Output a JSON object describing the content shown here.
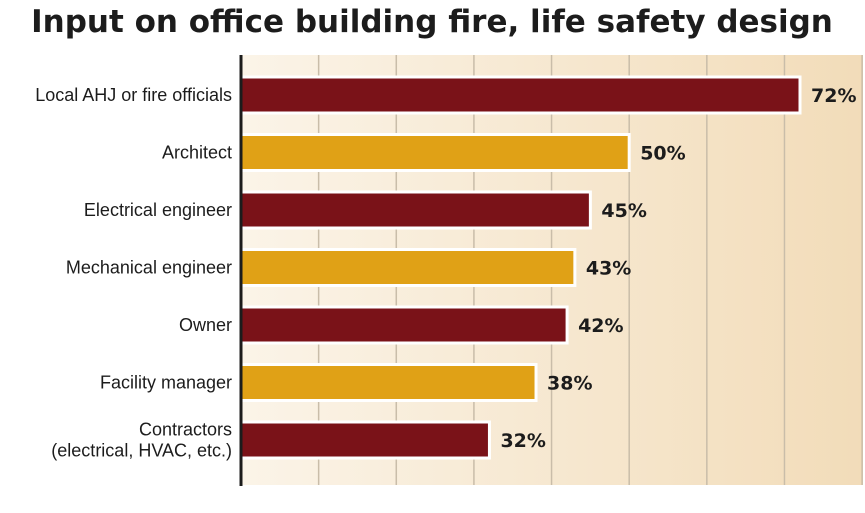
{
  "chart_data": {
    "type": "bar",
    "orientation": "horizontal",
    "title": "Input on office building fire, life safety design",
    "xlabel": "",
    "ylabel": "",
    "categories": [
      [
        "Local AHJ or fire officials"
      ],
      [
        "Architect"
      ],
      [
        "Electrical engineer"
      ],
      [
        "Mechanical engineer"
      ],
      [
        "Owner"
      ],
      [
        "Facility manager"
      ],
      [
        "Contractors",
        "(electrical, HVAC, etc.)"
      ]
    ],
    "values": [
      72,
      50,
      45,
      43,
      42,
      38,
      32
    ],
    "value_labels": [
      "72%",
      "50%",
      "45%",
      "43%",
      "42%",
      "38%",
      "32%"
    ],
    "xlim": [
      0,
      80
    ],
    "grid": true,
    "legend": "none",
    "colors": {
      "dark_red": "#7a1218",
      "gold": "#e0a116",
      "background_light": "#fbf4e8",
      "background_dark": "#f2dcb9",
      "gridline": "#c9bda9",
      "axis": "#1c1c1c"
    },
    "bar_color_pattern": [
      "dark_red",
      "gold",
      "dark_red",
      "gold",
      "dark_red",
      "gold",
      "dark_red"
    ]
  }
}
